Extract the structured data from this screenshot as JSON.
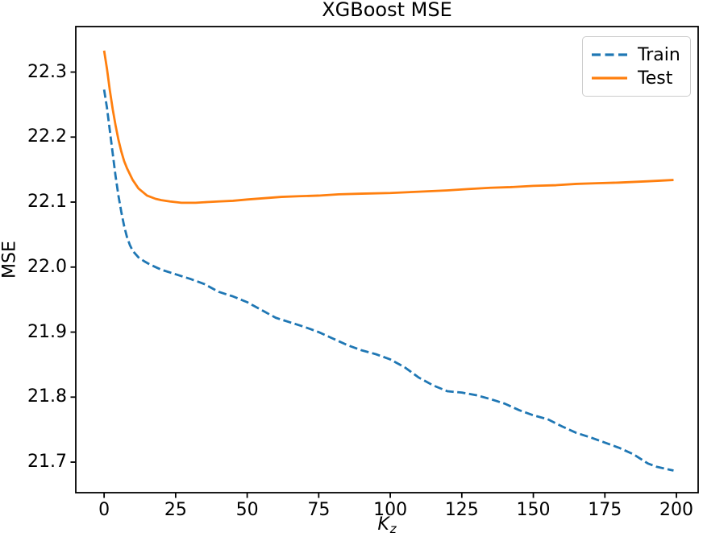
{
  "chart_data": {
    "type": "line",
    "title": "XGBoost MSE",
    "xlabel": {
      "main": "K",
      "sub": "z"
    },
    "ylabel": "MSE",
    "xlim": [
      -9.9,
      207.6
    ],
    "ylim": [
      21.653,
      22.37
    ],
    "grid": false,
    "legend": {
      "position": "upper right"
    },
    "axis_color": "#000000",
    "background_color": "#ffffff",
    "xticks": {
      "values": [
        0,
        25,
        50,
        75,
        100,
        125,
        150,
        175,
        200
      ],
      "labels": [
        "0",
        "25",
        "50",
        "75",
        "100",
        "125",
        "150",
        "175",
        "200"
      ]
    },
    "yticks": {
      "values": [
        21.7,
        21.8,
        21.9,
        22.0,
        22.1,
        22.2,
        22.3
      ],
      "labels": [
        "21.7",
        "21.8",
        "21.9",
        "22.0",
        "22.1",
        "22.2",
        "22.3"
      ]
    },
    "series": [
      {
        "name": "Train",
        "color": "#1f77b4",
        "style": "dashed",
        "x": [
          0,
          1,
          2,
          3,
          4,
          5,
          6,
          7,
          8,
          9,
          10,
          12,
          14,
          16,
          18,
          20,
          25,
          30,
          35,
          40,
          45,
          50,
          55,
          60,
          65,
          70,
          75,
          80,
          85,
          90,
          95,
          100,
          105,
          110,
          115,
          120,
          125,
          130,
          135,
          140,
          145,
          150,
          155,
          160,
          165,
          170,
          175,
          180,
          185,
          190,
          193,
          196,
          199
        ],
        "y": [
          22.273,
          22.245,
          22.21,
          22.175,
          22.14,
          22.11,
          22.085,
          22.063,
          22.046,
          22.034,
          22.025,
          22.015,
          22.009,
          22.004,
          22.0,
          21.996,
          21.989,
          21.982,
          21.974,
          21.962,
          21.955,
          21.946,
          21.934,
          21.922,
          21.915,
          21.908,
          21.9,
          21.89,
          21.88,
          21.872,
          21.866,
          21.858,
          21.846,
          21.83,
          21.818,
          21.809,
          21.807,
          21.803,
          21.797,
          21.79,
          21.78,
          21.772,
          21.766,
          21.755,
          21.745,
          21.738,
          21.73,
          21.722,
          21.712,
          21.698,
          21.693,
          21.69,
          21.687
        ]
      },
      {
        "name": "Test",
        "color": "#ff7f0e",
        "style": "solid",
        "x": [
          0,
          1,
          2,
          3,
          4,
          5,
          6,
          7,
          8,
          10,
          12,
          15,
          18,
          20,
          23,
          27,
          32,
          36,
          40,
          45,
          50,
          56,
          62,
          68,
          75,
          82,
          90,
          100,
          110,
          120,
          127,
          135,
          142,
          150,
          158,
          165,
          172,
          180,
          190,
          199
        ],
        "y": [
          22.333,
          22.305,
          22.272,
          22.243,
          22.218,
          22.196,
          22.178,
          22.163,
          22.152,
          22.134,
          22.121,
          22.11,
          22.105,
          22.103,
          22.101,
          22.099,
          22.099,
          22.1,
          22.101,
          22.102,
          22.104,
          22.106,
          22.108,
          22.109,
          22.11,
          22.112,
          22.113,
          22.114,
          22.116,
          22.118,
          22.12,
          22.122,
          22.123,
          22.125,
          22.126,
          22.128,
          22.129,
          22.13,
          22.132,
          22.134
        ]
      }
    ]
  }
}
